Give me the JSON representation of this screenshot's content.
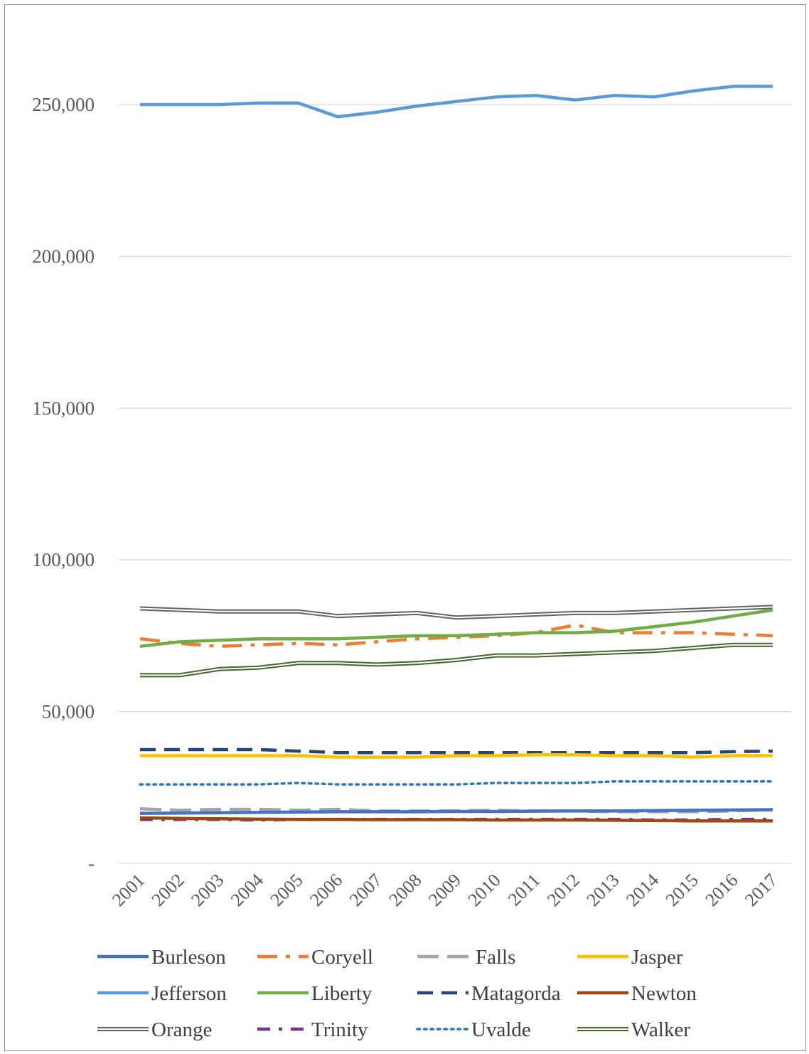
{
  "chart_data": {
    "type": "line",
    "title": "",
    "xlabel": "",
    "ylabel": "",
    "ylim": [
      0,
      250000
    ],
    "grid": true,
    "legend_position": "bottom",
    "y_ticks": [
      {
        "value": 0,
        "label": "-"
      },
      {
        "value": 50000,
        "label": "50,000"
      },
      {
        "value": 100000,
        "label": "100,000"
      },
      {
        "value": 150000,
        "label": "150,000"
      },
      {
        "value": 200000,
        "label": "200,000"
      },
      {
        "value": 250000,
        "label": "250,000"
      }
    ],
    "categories": [
      "2001",
      "2002",
      "2003",
      "2004",
      "2005",
      "2006",
      "2007",
      "2008",
      "2009",
      "2010",
      "2011",
      "2012",
      "2013",
      "2014",
      "2015",
      "2016",
      "2017"
    ],
    "series": [
      {
        "name": "Burleson",
        "color": "#4472C4",
        "style": "solid",
        "values": [
          16500,
          16600,
          16700,
          16800,
          16900,
          17000,
          17000,
          17000,
          17100,
          17100,
          17200,
          17300,
          17300,
          17400,
          17500,
          17600,
          17700
        ]
      },
      {
        "name": "Coryell",
        "color": "#ED7D31",
        "style": "dashdot",
        "values": [
          74000,
          72500,
          71500,
          72000,
          72500,
          72000,
          73000,
          74000,
          74500,
          75000,
          76000,
          78500,
          76000,
          76000,
          76000,
          75500,
          75000
        ]
      },
      {
        "name": "Falls",
        "color": "#A5A5A5",
        "style": "longdash",
        "values": [
          18000,
          17500,
          17800,
          17800,
          17500,
          17800,
          17300,
          17300,
          17300,
          17500,
          17300,
          17300,
          17000,
          17000,
          17000,
          17300,
          17700
        ]
      },
      {
        "name": "Jasper",
        "color": "#FFC000",
        "style": "solid",
        "values": [
          35500,
          35500,
          35500,
          35500,
          35500,
          35000,
          35000,
          35000,
          35500,
          35500,
          35800,
          35800,
          35500,
          35500,
          35000,
          35500,
          35500
        ]
      },
      {
        "name": "Jefferson",
        "color": "#5B9BD5",
        "style": "solid",
        "values": [
          250000,
          250000,
          250000,
          250500,
          250500,
          246000,
          247500,
          249500,
          251000,
          252500,
          253000,
          251500,
          253000,
          252500,
          254500,
          256000,
          256000
        ]
      },
      {
        "name": "Liberty",
        "color": "#70AD47",
        "style": "solid",
        "values": [
          71500,
          73000,
          73500,
          74000,
          74000,
          74000,
          74500,
          75000,
          75000,
          75500,
          76000,
          76000,
          76500,
          78000,
          79500,
          81500,
          83500
        ]
      },
      {
        "name": "Matagorda",
        "color": "#264478",
        "style": "dash",
        "values": [
          37500,
          37500,
          37500,
          37500,
          37000,
          36500,
          36500,
          36500,
          36500,
          36500,
          36500,
          36500,
          36500,
          36500,
          36500,
          36800,
          37000
        ]
      },
      {
        "name": "Newton",
        "color": "#9E480E",
        "style": "solid",
        "values": [
          15000,
          14800,
          14700,
          14600,
          14500,
          14500,
          14400,
          14400,
          14400,
          14300,
          14300,
          14300,
          14200,
          14100,
          14000,
          14000,
          14000
        ]
      },
      {
        "name": "Orange",
        "color": "#636363",
        "style": "double",
        "values": [
          84000,
          83500,
          83000,
          83000,
          83000,
          81500,
          82000,
          82500,
          81000,
          81500,
          82000,
          82500,
          82500,
          83000,
          83500,
          84000,
          84500
        ]
      },
      {
        "name": "Trinity",
        "color": "#7030A0",
        "style": "dashdot2",
        "values": [
          14500,
          14500,
          14500,
          14300,
          14500,
          14500,
          14500,
          14500,
          14500,
          14500,
          14500,
          14500,
          14500,
          14300,
          14300,
          14500,
          14500
        ]
      },
      {
        "name": "Uvalde",
        "color": "#2E75B6",
        "style": "dot",
        "values": [
          26000,
          26000,
          26000,
          26000,
          26500,
          26000,
          26000,
          26000,
          26000,
          26500,
          26500,
          26500,
          27000,
          27000,
          27000,
          27000,
          27000
        ]
      },
      {
        "name": "Walker",
        "color": "#43682B",
        "style": "double",
        "values": [
          62000,
          62000,
          64000,
          64500,
          66000,
          66000,
          65500,
          66000,
          67000,
          68500,
          68500,
          69000,
          69500,
          70000,
          71000,
          72000,
          72000
        ]
      }
    ]
  }
}
